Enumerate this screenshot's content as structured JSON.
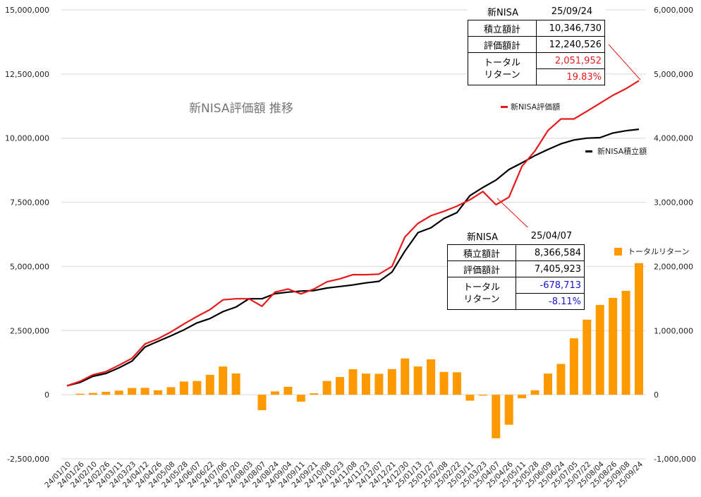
{
  "chart_data": {
    "type": "bar+line",
    "title": "新NISA評価額 推移",
    "categories": [
      "24/01/10",
      "24/01/26",
      "24/02/10",
      "24/02/26",
      "24/03/11",
      "24/03/23",
      "24/04/12",
      "24/04/26",
      "24/05/08",
      "24/05/28",
      "24/06/07",
      "24/06/22",
      "24/07/06",
      "24/07/20",
      "24/08/03",
      "24/08/07",
      "24/08/24",
      "24/09/04",
      "24/09/11",
      "24/09/21",
      "24/10/08",
      "24/10/23",
      "24/11/08",
      "24/11/23",
      "24/12/07",
      "24/12/21",
      "24/12/30",
      "25/01/13",
      "25/01/27",
      "25/02/08",
      "25/02/22",
      "25/03/11",
      "25/03/23",
      "25/04/07",
      "25/04/26",
      "25/05/11",
      "25/05/28",
      "25/06/09",
      "25/06/24",
      "25/07/05",
      "25/07/22",
      "25/08/04",
      "25/08/26",
      "25/09/08",
      "25/09/24"
    ],
    "series": [
      {
        "name": "新NISA評価額",
        "axis": "left",
        "kind": "line",
        "color": "#e8191b",
        "values": [
          350000,
          520000,
          780000,
          900000,
          1150000,
          1420000,
          1980000,
          2180000,
          2450000,
          2760000,
          3050000,
          3320000,
          3700000,
          3740000,
          3740000,
          3450000,
          4000000,
          4120000,
          3930000,
          4120000,
          4400000,
          4520000,
          4680000,
          4680000,
          4700000,
          5000000,
          6150000,
          6680000,
          6980000,
          7150000,
          7350000,
          7600000,
          7920000,
          7405923,
          7700000,
          8900000,
          9500000,
          10300000,
          10750000,
          10750000,
          11050000,
          11360000,
          11670000,
          11930000,
          12240526
        ]
      },
      {
        "name": "新NISA積立額",
        "axis": "left",
        "kind": "line",
        "color": "#000000",
        "values": [
          350000,
          480000,
          720000,
          830000,
          1050000,
          1310000,
          1860000,
          2080000,
          2300000,
          2530000,
          2800000,
          2970000,
          3240000,
          3420000,
          3740000,
          3740000,
          3940000,
          4000000,
          4040000,
          4060000,
          4160000,
          4220000,
          4280000,
          4360000,
          4420000,
          4780000,
          5600000,
          6320000,
          6510000,
          6870000,
          7100000,
          7760000,
          8080000,
          8366584,
          8780000,
          9040000,
          9320000,
          9560000,
          9780000,
          9930000,
          10000000,
          10020000,
          10200000,
          10290000,
          10346730
        ]
      },
      {
        "name": "トータルリターン",
        "axis": "right",
        "kind": "bar",
        "color": "#ff9900",
        "values": [
          0,
          16000,
          28000,
          46000,
          64000,
          105000,
          108000,
          70000,
          118000,
          206000,
          214000,
          310000,
          440000,
          332000,
          0,
          -241000,
          52000,
          124000,
          -108000,
          22000,
          214000,
          276000,
          398000,
          330000,
          326000,
          400000,
          566000,
          440000,
          552000,
          356000,
          350000,
          -92000,
          -14000,
          -678713,
          -468000,
          -56000,
          70000,
          330000,
          480000,
          880000,
          1170000,
          1400000,
          1510000,
          1620000,
          2051952
        ]
      }
    ],
    "y_left": {
      "min": -2500000,
      "max": 15000000,
      "step": 2500000,
      "ticks": [
        "-2,500,000",
        "0",
        "2,500,000",
        "5,000,000",
        "7,500,000",
        "10,000,000",
        "12,500,000",
        "15,000,000"
      ]
    },
    "y_right": {
      "min": -1000000,
      "max": 6000000,
      "step": 1000000,
      "ticks": [
        "-1,000,000",
        "0",
        "1,000,000",
        "2,000,000",
        "3,000,000",
        "4,000,000",
        "5,000,000",
        "6,000,000"
      ]
    },
    "grid": true,
    "legend": [
      {
        "label": "新NISA評価額",
        "color": "#e8191b"
      },
      {
        "label": "新NISA積立額",
        "color": "#000000"
      },
      {
        "label": "トータルリターン",
        "color": "#ff9900"
      }
    ]
  },
  "callouts": {
    "latest": {
      "name": "新NISA",
      "date": "25/09/24",
      "rows": [
        {
          "label": "積立額計",
          "value": "10,346,730"
        },
        {
          "label": "評価額計",
          "value": "12,240,526"
        }
      ],
      "return_label": "トータル\nリターン",
      "return_value": "2,051,952",
      "return_pct": "19.83%",
      "color": "#e8191b"
    },
    "dip": {
      "name": "新NISA",
      "date": "25/04/07",
      "rows": [
        {
          "label": "積立額計",
          "value": "8,366,584"
        },
        {
          "label": "評価額計",
          "value": "7,405,923"
        }
      ],
      "return_label": "トータル\nリターン",
      "return_value": "-678,713",
      "return_pct": "-8.11%",
      "color": "#1515d0"
    }
  }
}
